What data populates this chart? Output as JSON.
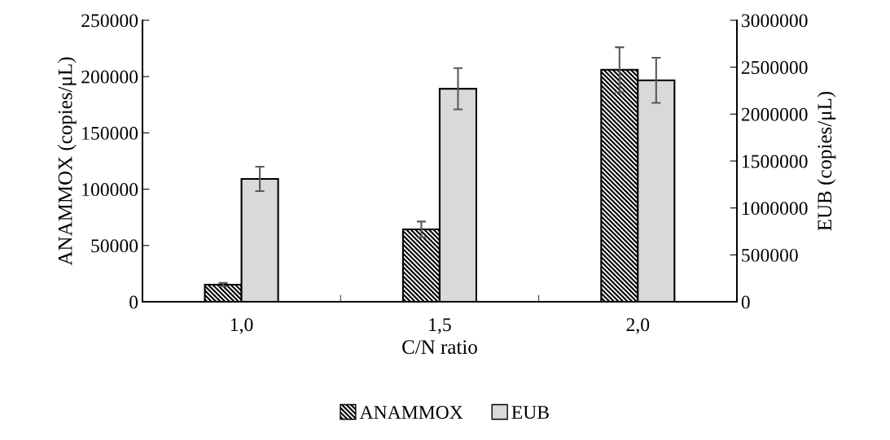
{
  "chart_data": {
    "type": "bar",
    "xlabel": "C/N ratio",
    "ylabel": "ANAMMOX (copies/μL)",
    "y2label": "EUB (copies/μL)",
    "categories": [
      "1,0",
      "1,5",
      "2,0"
    ],
    "series": [
      {
        "name": "ANAMMOX",
        "color": "#000000",
        "values": [
          15300,
          64300,
          206000
        ],
        "errors": [
          1500,
          7000,
          20000
        ],
        "axis": "y"
      },
      {
        "name": "EUB",
        "color": "#d9d9d9",
        "values": [
          1310000,
          2270000,
          2360000
        ],
        "errors": [
          130000,
          220000,
          240000
        ],
        "axis": "y2"
      }
    ],
    "ylim": [
      0,
      250000
    ],
    "yticks": [
      0,
      50000,
      100000,
      150000,
      200000,
      250000
    ],
    "y2lim": [
      0,
      3000000
    ],
    "y2ticks": [
      0,
      500000,
      1000000,
      1500000,
      2000000,
      2500000,
      3000000
    ],
    "grid": false,
    "legend": "bottom"
  }
}
